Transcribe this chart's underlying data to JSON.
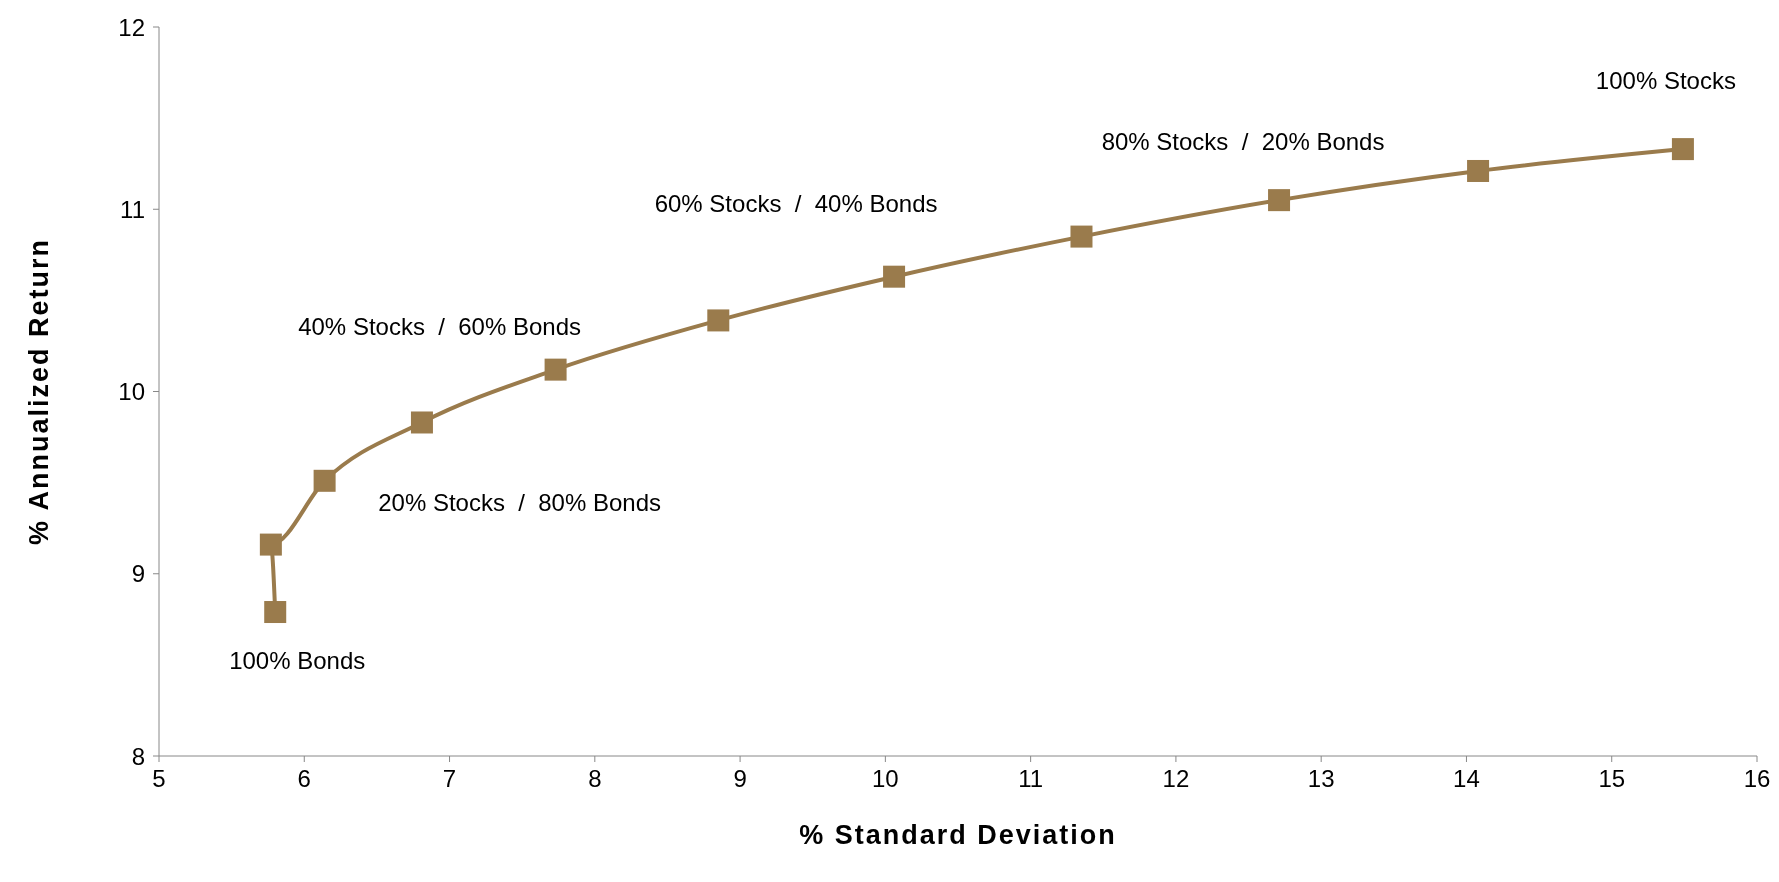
{
  "chart_data": {
    "type": "line",
    "xlabel": "% Standard Deviation",
    "ylabel": "% Annualized Return",
    "x": [
      5.8,
      5.77,
      6.14,
      6.81,
      7.73,
      8.85,
      10.06,
      11.35,
      12.71,
      14.08,
      15.49
    ],
    "series": [
      {
        "color": "#9a7b4c",
        "values": [
          8.79,
          9.16,
          9.51,
          9.83,
          10.12,
          10.39,
          10.63,
          10.85,
          11.05,
          11.21,
          11.33
        ]
      }
    ],
    "xlim": [
      5,
      16
    ],
    "xticks": [
      5,
      6,
      7,
      8,
      9,
      10,
      11,
      12,
      13,
      14,
      15,
      16
    ],
    "ylim": [
      8,
      12
    ],
    "yticks": [
      8,
      9,
      10,
      11,
      12
    ],
    "marker": "square",
    "line_style": "solid",
    "grid": false,
    "legend": false,
    "annotations": [
      {
        "text": "100% Bonds",
        "x": 5.8,
        "y": 8.79
      },
      {
        "text": "20% Stocks  /  80% Bonds",
        "x": 6.14,
        "y": 9.51
      },
      {
        "text": "40% Stocks  /  60% Bonds",
        "x": 7.73,
        "y": 10.12
      },
      {
        "text": "60% Stocks  /  40% Bonds",
        "x": 10.06,
        "y": 10.63
      },
      {
        "text": "80% Stocks  /  20% Bonds",
        "x": 12.71,
        "y": 11.05
      },
      {
        "text": "100% Stocks",
        "x": 15.49,
        "y": 11.33
      }
    ]
  }
}
